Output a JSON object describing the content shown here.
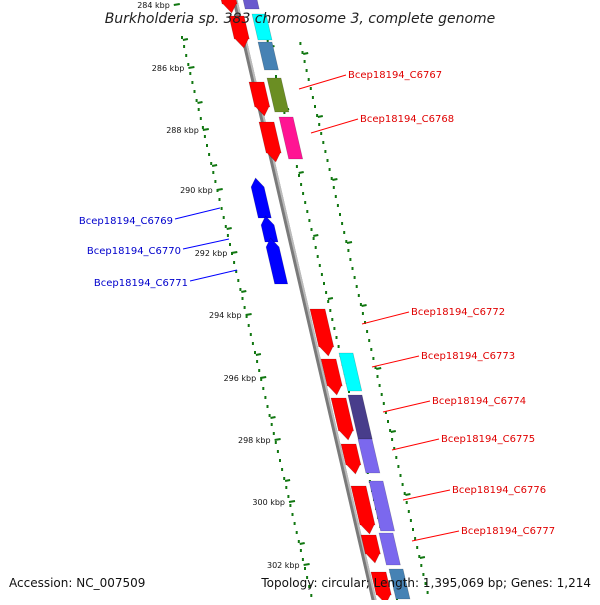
{
  "title": "Burkholderia sp. 383 chromosome 3, complete genome",
  "footer": {
    "accession": "Accession: NC_007509",
    "summary": "Topology: circular; Length: 1,395,069 bp; Genes: 1,214"
  },
  "scale": {
    "ticks": [
      "284 kbp",
      "286 kbp",
      "288 kbp",
      "290 kbp",
      "292 kbp",
      "294 kbp",
      "296 kbp",
      "298 kbp",
      "300 kbp",
      "302 kbp"
    ]
  },
  "genes": {
    "forward": [
      {
        "label": "Bcep18194_C6767",
        "cog_color": "#6b8e23"
      },
      {
        "label": "Bcep18194_C6768",
        "cog_color": "#ff1493"
      },
      {
        "label": "Bcep18194_C6772",
        "cog_color": "#00ffff"
      },
      {
        "label": "Bcep18194_C6773",
        "cog_color": "#483d8b"
      },
      {
        "label": "Bcep18194_C6774",
        "cog_color": "#7b68ee"
      },
      {
        "label": "Bcep18194_C6775",
        "cog_color": "#7b68ee"
      },
      {
        "label": "Bcep18194_C6776",
        "cog_color": "#483d8b"
      },
      {
        "label": "Bcep18194_C6777",
        "cog_color": "#7b68ee"
      }
    ],
    "reverse": [
      {
        "label": "Bcep18194_C6769"
      },
      {
        "label": "Bcep18194_C6770"
      },
      {
        "label": "Bcep18194_C6771"
      }
    ]
  },
  "colors": {
    "forward_gene": "#ff0000",
    "reverse_gene": "#0000ff",
    "backbone": "#888888",
    "gc_dots": "#117711",
    "cog_cyan": "#00ffff",
    "cog_steelblue": "#4682b4"
  }
}
